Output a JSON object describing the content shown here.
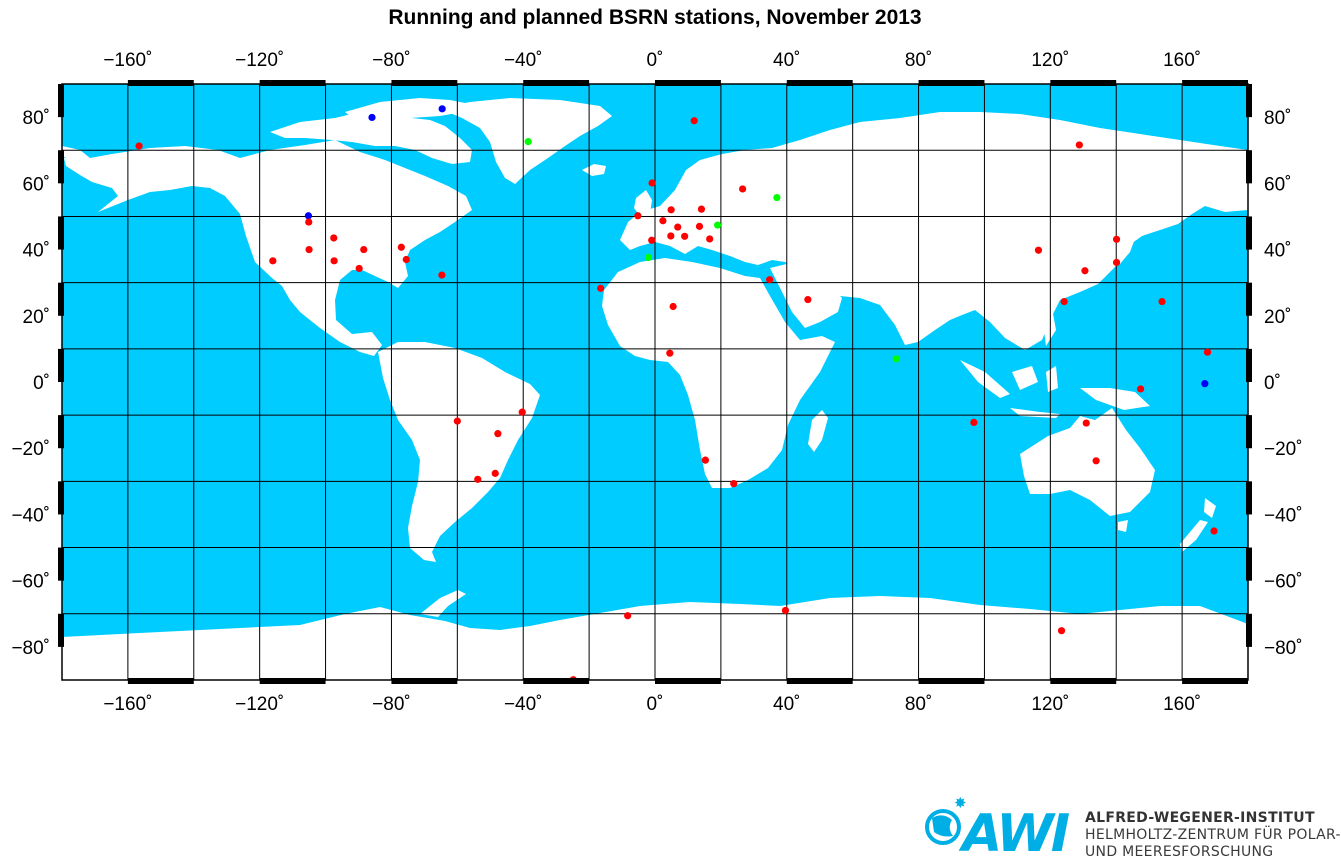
{
  "title": "Running and planned BSRN stations, November 2013",
  "axes": {
    "lon_ticks": [
      -160,
      -120,
      -80,
      -40,
      0,
      40,
      80,
      120,
      160
    ],
    "lat_ticks": [
      80,
      60,
      40,
      20,
      0,
      -20,
      -40,
      -60,
      -80
    ],
    "lon_range": [
      -180,
      180
    ],
    "lat_range": [
      -90,
      90
    ],
    "degree_symbol": "˚",
    "minus_sign": "−",
    "grid_spacing_deg": 20
  },
  "colors": {
    "ocean": "#00ccff",
    "land": "#ffffff",
    "grid": "#000000",
    "running": "#ff0000",
    "planned_green": "#00ff00",
    "planned_blue": "#0000ff",
    "logo": "#00aee6"
  },
  "map_data": {
    "type": "scatter-map",
    "stations": [
      {
        "lon": -156.6,
        "lat": 71.3,
        "color": "red"
      },
      {
        "lon": -105.2,
        "lat": 50.2,
        "color": "blue"
      },
      {
        "lon": -105.1,
        "lat": 48.3,
        "color": "red"
      },
      {
        "lon": -105.0,
        "lat": 40.0,
        "color": "red"
      },
      {
        "lon": -97.5,
        "lat": 43.5,
        "color": "red"
      },
      {
        "lon": -116.0,
        "lat": 36.6,
        "color": "red"
      },
      {
        "lon": -97.4,
        "lat": 36.6,
        "color": "red"
      },
      {
        "lon": -89.8,
        "lat": 34.3,
        "color": "red"
      },
      {
        "lon": -88.4,
        "lat": 40.0,
        "color": "red"
      },
      {
        "lon": -77.0,
        "lat": 40.7,
        "color": "red"
      },
      {
        "lon": -75.5,
        "lat": 37.0,
        "color": "red"
      },
      {
        "lon": -64.7,
        "lat": 32.3,
        "color": "red"
      },
      {
        "lon": -85.9,
        "lat": 79.9,
        "color": "blue"
      },
      {
        "lon": -64.6,
        "lat": 82.5,
        "color": "blue"
      },
      {
        "lon": -38.5,
        "lat": 72.6,
        "color": "green"
      },
      {
        "lon": 11.9,
        "lat": 78.9,
        "color": "red"
      },
      {
        "lon": 128.8,
        "lat": 71.6,
        "color": "red"
      },
      {
        "lon": -0.9,
        "lat": 60.1,
        "color": "red"
      },
      {
        "lon": 26.6,
        "lat": 58.3,
        "color": "red"
      },
      {
        "lon": 37.0,
        "lat": 55.7,
        "color": "green"
      },
      {
        "lon": -5.2,
        "lat": 50.2,
        "color": "red"
      },
      {
        "lon": 2.4,
        "lat": 48.7,
        "color": "red"
      },
      {
        "lon": 4.9,
        "lat": 52.0,
        "color": "red"
      },
      {
        "lon": 14.1,
        "lat": 52.2,
        "color": "red"
      },
      {
        "lon": 6.9,
        "lat": 46.8,
        "color": "red"
      },
      {
        "lon": 4.8,
        "lat": 44.1,
        "color": "red"
      },
      {
        "lon": 9.0,
        "lat": 44.0,
        "color": "red"
      },
      {
        "lon": 16.6,
        "lat": 43.2,
        "color": "red"
      },
      {
        "lon": 13.5,
        "lat": 47.0,
        "color": "red"
      },
      {
        "lon": 19.0,
        "lat": 47.4,
        "color": "green"
      },
      {
        "lon": -1.0,
        "lat": 42.8,
        "color": "red"
      },
      {
        "lon": -2.0,
        "lat": 37.6,
        "color": "green"
      },
      {
        "lon": -16.5,
        "lat": 28.3,
        "color": "red"
      },
      {
        "lon": 34.8,
        "lat": 30.9,
        "color": "red"
      },
      {
        "lon": 46.4,
        "lat": 24.9,
        "color": "red"
      },
      {
        "lon": 5.5,
        "lat": 22.8,
        "color": "red"
      },
      {
        "lon": 4.5,
        "lat": 8.7,
        "color": "red"
      },
      {
        "lon": 73.2,
        "lat": 7.0,
        "color": "green"
      },
      {
        "lon": 116.4,
        "lat": 39.8,
        "color": "red"
      },
      {
        "lon": 140.1,
        "lat": 43.1,
        "color": "red"
      },
      {
        "lon": 140.1,
        "lat": 36.1,
        "color": "red"
      },
      {
        "lon": 130.5,
        "lat": 33.6,
        "color": "red"
      },
      {
        "lon": 124.2,
        "lat": 24.3,
        "color": "red"
      },
      {
        "lon": 153.9,
        "lat": 24.3,
        "color": "red"
      },
      {
        "lon": 167.7,
        "lat": 9.0,
        "color": "red"
      },
      {
        "lon": 166.9,
        "lat": -0.5,
        "color": "blue"
      },
      {
        "lon": 147.4,
        "lat": -2.1,
        "color": "red"
      },
      {
        "lon": 96.8,
        "lat": -12.2,
        "color": "red"
      },
      {
        "lon": 130.9,
        "lat": -12.4,
        "color": "red"
      },
      {
        "lon": 133.9,
        "lat": -23.8,
        "color": "red"
      },
      {
        "lon": 169.7,
        "lat": -45.0,
        "color": "red"
      },
      {
        "lon": -60.0,
        "lat": -11.8,
        "color": "red"
      },
      {
        "lon": -40.3,
        "lat": -9.1,
        "color": "red"
      },
      {
        "lon": -47.7,
        "lat": -15.6,
        "color": "red"
      },
      {
        "lon": -48.5,
        "lat": -27.6,
        "color": "red"
      },
      {
        "lon": -53.8,
        "lat": -29.4,
        "color": "red"
      },
      {
        "lon": 15.3,
        "lat": -23.6,
        "color": "red"
      },
      {
        "lon": 23.9,
        "lat": -30.7,
        "color": "red"
      },
      {
        "lon": -8.3,
        "lat": -70.6,
        "color": "red"
      },
      {
        "lon": 39.6,
        "lat": -69.0,
        "color": "red"
      },
      {
        "lon": 123.4,
        "lat": -75.1,
        "color": "red"
      },
      {
        "lon": -24.8,
        "lat": -89.9,
        "color": "red"
      }
    ]
  },
  "logo": {
    "wordmark": "AWI",
    "line1": "ALFRED-WEGENER-INSTITUT",
    "line2": "HELMHOLTZ-ZENTRUM FÜR POLAR-",
    "line3": "UND MEERESFORSCHUNG"
  }
}
